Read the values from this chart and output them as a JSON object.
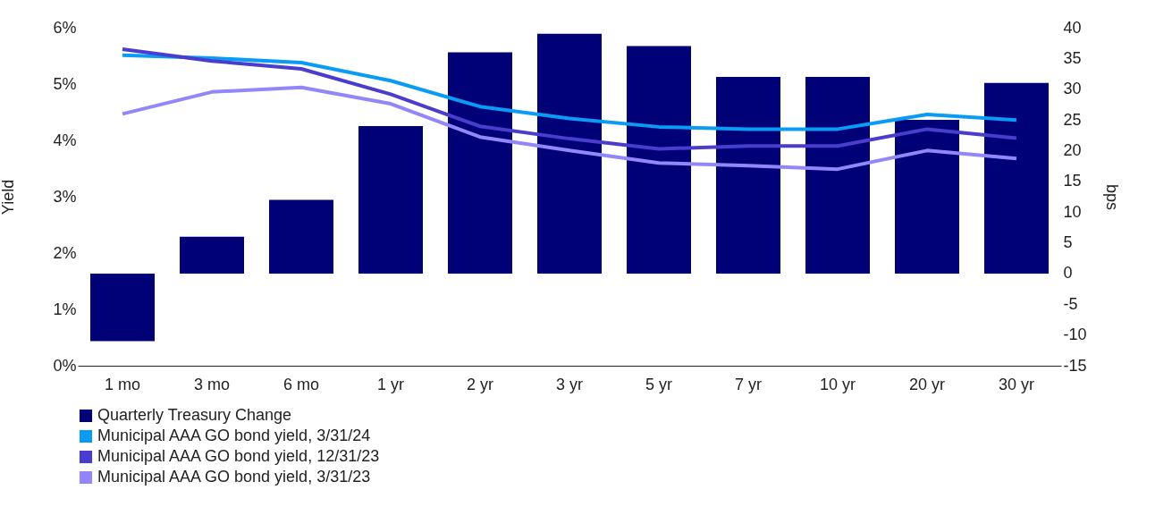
{
  "chart_data": {
    "type": "line",
    "ylabel": "Yield",
    "y2label": "bps",
    "categories": [
      "1 mo",
      "3 mo",
      "6 mo",
      "1 yr",
      "2 yr",
      "3 yr",
      "5 yr",
      "7 yr",
      "10 yr",
      "20 yr",
      "30 yr"
    ],
    "series": [
      {
        "name": "Quarterly Treasury Change",
        "type": "bar",
        "axis": "y2",
        "color": "#000077",
        "values": [
          -11,
          6,
          12,
          24,
          36,
          39,
          37,
          32,
          32,
          25,
          31
        ]
      },
      {
        "name": "Municipal AAA GO bond yield, 3/31/24",
        "color": "#0a9bf5",
        "values": [
          5.51,
          5.46,
          5.38,
          5.06,
          4.6,
          4.39,
          4.24,
          4.2,
          4.2,
          4.46,
          4.36
        ]
      },
      {
        "name": "Municipal AAA GO bond yield, 12/31/23",
        "color": "#4a3ccc",
        "values": [
          5.62,
          5.41,
          5.27,
          4.82,
          4.25,
          4.03,
          3.85,
          3.9,
          3.9,
          4.2,
          4.04
        ]
      },
      {
        "name": "Municipal AAA GO bond yield, 3/31/23",
        "color": "#9287fa",
        "values": [
          4.47,
          4.86,
          4.94,
          4.65,
          4.06,
          3.82,
          3.6,
          3.55,
          3.49,
          3.82,
          3.68
        ]
      }
    ],
    "ylim": [
      0,
      6
    ],
    "yticks": [
      {
        "value": 0,
        "label": "0%"
      },
      {
        "value": 1,
        "label": "1%"
      },
      {
        "value": 2,
        "label": "2%"
      },
      {
        "value": 3,
        "label": "3%"
      },
      {
        "value": 4,
        "label": "4%"
      },
      {
        "value": 5,
        "label": "5%"
      },
      {
        "value": 6,
        "label": "6%"
      }
    ],
    "y2lim": [
      -15,
      40
    ],
    "y2ticks": [
      -15,
      -10,
      -5,
      0,
      5,
      10,
      15,
      20,
      25,
      30,
      35,
      40
    ],
    "legend": "bottom left"
  }
}
